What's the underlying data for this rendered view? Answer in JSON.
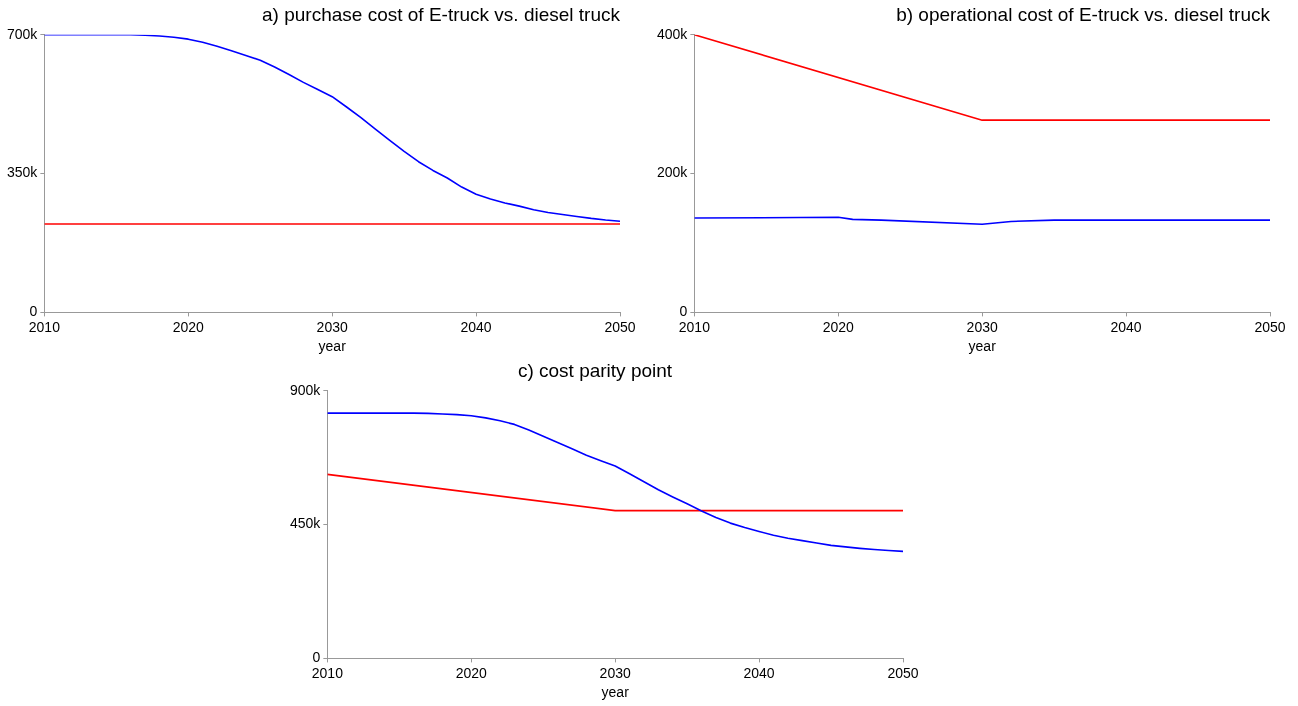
{
  "chart_data": [
    {
      "type": "line",
      "title": "a) purchase cost of E-truck vs. diesel truck",
      "xlabel": "year",
      "xlim": [
        2010,
        2050
      ],
      "xticks": [
        2010,
        2020,
        2030,
        2040,
        2050
      ],
      "ylim": [
        0,
        700000
      ],
      "yticks": [
        {
          "value": 0,
          "label": "0"
        },
        {
          "value": 350000,
          "label": "350k"
        },
        {
          "value": 700000,
          "label": "700k"
        }
      ],
      "grid": false,
      "legend": false,
      "marker": "none",
      "series": [
        {
          "color": "#0000ff",
          "x": [
            2010,
            2014,
            2016,
            2017,
            2018,
            2019,
            2020,
            2021,
            2022,
            2023,
            2024,
            2025,
            2026,
            2027,
            2028,
            2029,
            2030,
            2031,
            2032,
            2033,
            2034,
            2035,
            2036,
            2037,
            2038,
            2039,
            2040,
            2041,
            2042,
            2043,
            2044,
            2045,
            2046,
            2047,
            2048,
            2049,
            2050
          ],
          "values": [
            700000,
            700000,
            700000,
            699000,
            697000,
            694000,
            689000,
            681000,
            671000,
            660000,
            648000,
            636000,
            619000,
            600000,
            580000,
            562000,
            544000,
            518000,
            491000,
            462000,
            434000,
            406000,
            380000,
            358000,
            339000,
            316000,
            298000,
            286000,
            276000,
            268000,
            259000,
            252000,
            247000,
            242000,
            237000,
            233000,
            230000
          ]
        },
        {
          "color": "#ff0000",
          "x": [
            2010,
            2050
          ],
          "values": [
            223000,
            223000
          ]
        }
      ]
    },
    {
      "type": "line",
      "title": "b) operational cost of E-truck vs. diesel truck",
      "xlabel": "year",
      "xlim": [
        2010,
        2050
      ],
      "xticks": [
        2010,
        2020,
        2030,
        2040,
        2050
      ],
      "ylim": [
        0,
        400000
      ],
      "yticks": [
        {
          "value": 0,
          "label": "0"
        },
        {
          "value": 200000,
          "label": "200k"
        },
        {
          "value": 400000,
          "label": "400k"
        }
      ],
      "grid": false,
      "legend": false,
      "marker": "none",
      "series": [
        {
          "color": "#ff0000",
          "x": [
            2010,
            2030,
            2050
          ],
          "values": [
            400000,
            277000,
            277000
          ]
        },
        {
          "color": "#0000ff",
          "x": [
            2010,
            2020,
            2021,
            2023,
            2030,
            2032,
            2035,
            2040,
            2050
          ],
          "values": [
            136000,
            137000,
            134000,
            133000,
            127000,
            131000,
            133000,
            133000,
            133000
          ]
        }
      ]
    },
    {
      "type": "line",
      "title": "c) cost parity point",
      "xlabel": "year",
      "xlim": [
        2010,
        2050
      ],
      "xticks": [
        2010,
        2020,
        2030,
        2040,
        2050
      ],
      "ylim": [
        0,
        900000
      ],
      "yticks": [
        {
          "value": 0,
          "label": "0"
        },
        {
          "value": 450000,
          "label": "450k"
        },
        {
          "value": 900000,
          "label": "900k"
        }
      ],
      "grid": false,
      "legend": false,
      "marker": "none",
      "series": [
        {
          "color": "#0000ff",
          "x": [
            2010,
            2016,
            2017,
            2018,
            2019,
            2020,
            2021,
            2022,
            2023,
            2024,
            2025,
            2026,
            2027,
            2028,
            2029,
            2030,
            2031,
            2032,
            2033,
            2034,
            2035,
            2036,
            2037,
            2038,
            2039,
            2040,
            2041,
            2042,
            2043,
            2044,
            2045,
            2046,
            2047,
            2048,
            2049,
            2050
          ],
          "values": [
            825000,
            825000,
            824000,
            822000,
            820000,
            816000,
            809000,
            799000,
            787000,
            768000,
            747000,
            726000,
            705000,
            683000,
            665000,
            647000,
            621000,
            594000,
            567000,
            543000,
            520000,
            496000,
            474000,
            455000,
            440000,
            427000,
            414000,
            404000,
            396000,
            388000,
            380000,
            375000,
            370000,
            366000,
            363000,
            360000
          ]
        },
        {
          "color": "#ff0000",
          "x": [
            2010,
            2030,
            2050
          ],
          "values": [
            619000,
            497000,
            497000
          ]
        }
      ]
    }
  ]
}
